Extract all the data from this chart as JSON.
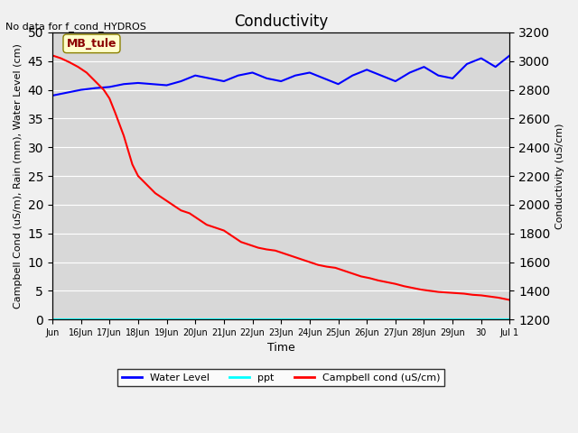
{
  "title": "Conductivity",
  "no_data_text": "No data for f_cond_HYDROS",
  "ylabel_left": "Campbell Cond (uS/m), Rain (mm), Water Level (cm)",
  "ylabel_right": "Conductivity (uS/cm)",
  "xlabel": "Time",
  "ylim_left": [
    0,
    50
  ],
  "ylim_right": [
    1200,
    3200
  ],
  "xlim": [
    0,
    16
  ],
  "bg_color": "#e8e8e8",
  "annotation_text": "MB_tule",
  "annotation_box_color": "#ffffcc",
  "annotation_box_edge": "#8b8000",
  "legend_entries": [
    "Water Level",
    "ppt",
    "Campbell cond (uS/cm)"
  ],
  "legend_colors": [
    "blue",
    "cyan",
    "red"
  ],
  "water_level": {
    "x": [
      0,
      0.5,
      1.0,
      1.5,
      2.0,
      2.5,
      3.0,
      3.5,
      4.0,
      4.5,
      5.0,
      5.5,
      6.0,
      6.5,
      7.0,
      7.5,
      8.0,
      8.5,
      9.0,
      9.5,
      10.0,
      10.5,
      11.0,
      11.5,
      12.0,
      12.5,
      13.0,
      13.5,
      14.0,
      14.5,
      15.0,
      15.5,
      16.0
    ],
    "y": [
      39.0,
      39.5,
      40.0,
      40.3,
      40.5,
      41.0,
      41.2,
      41.0,
      40.8,
      41.5,
      42.5,
      42.0,
      41.5,
      42.5,
      43.0,
      42.0,
      41.5,
      42.5,
      43.0,
      42.0,
      41.0,
      42.5,
      43.5,
      42.5,
      41.5,
      43.0,
      44.0,
      42.5,
      42.0,
      44.5,
      45.5,
      44.0,
      46.0
    ]
  },
  "ppt": {
    "x": [
      0,
      16
    ],
    "y": [
      0.0,
      0.0
    ]
  },
  "campbell_cond": {
    "x": [
      0,
      0.3,
      0.6,
      0.9,
      1.2,
      1.5,
      1.8,
      2.0,
      2.2,
      2.5,
      2.8,
      3.0,
      3.3,
      3.6,
      3.9,
      4.2,
      4.5,
      4.8,
      5.1,
      5.4,
      5.7,
      6.0,
      6.3,
      6.6,
      6.9,
      7.2,
      7.5,
      7.8,
      8.1,
      8.4,
      8.7,
      9.0,
      9.3,
      9.6,
      9.9,
      10.2,
      10.5,
      10.8,
      11.1,
      11.4,
      11.7,
      12.0,
      12.3,
      12.6,
      12.9,
      13.2,
      13.5,
      13.8,
      14.1,
      14.4,
      14.7,
      15.0,
      15.3,
      15.6,
      15.9,
      16.0
    ],
    "y": [
      46.0,
      45.5,
      44.8,
      44.0,
      43.0,
      41.5,
      40.0,
      38.5,
      36.0,
      32.0,
      27.0,
      25.0,
      23.5,
      22.0,
      21.0,
      20.0,
      19.0,
      18.5,
      17.5,
      16.5,
      16.0,
      15.5,
      14.5,
      13.5,
      13.0,
      12.5,
      12.2,
      12.0,
      11.5,
      11.0,
      10.5,
      10.0,
      9.5,
      9.2,
      9.0,
      8.5,
      8.0,
      7.5,
      7.2,
      6.8,
      6.5,
      6.2,
      5.8,
      5.5,
      5.2,
      5.0,
      4.8,
      4.7,
      4.6,
      4.5,
      4.3,
      4.2,
      4.0,
      3.8,
      3.5,
      3.4
    ]
  },
  "xtick_positions": [
    0,
    1,
    2,
    3,
    4,
    5,
    6,
    7,
    8,
    9,
    10,
    11,
    12,
    13,
    14,
    15,
    16
  ],
  "xtick_labels": [
    "Jun",
    "16Jun",
    "17Jun",
    "18Jun",
    "19Jun",
    "20Jun",
    "21Jun",
    "22Jun",
    "23Jun",
    "24Jun",
    "25Jun",
    "26Jun",
    "27Jun",
    "28Jun",
    "29Jun",
    "30",
    "Jul 1"
  ],
  "ytick_left": [
    0,
    5,
    10,
    15,
    20,
    25,
    30,
    35,
    40,
    45,
    50
  ],
  "ytick_right": [
    1200,
    1400,
    1600,
    1800,
    2000,
    2200,
    2400,
    2600,
    2800,
    3000,
    3200
  ],
  "grid_color": "#ffffff",
  "plot_bg_color": "#d8d8d8"
}
